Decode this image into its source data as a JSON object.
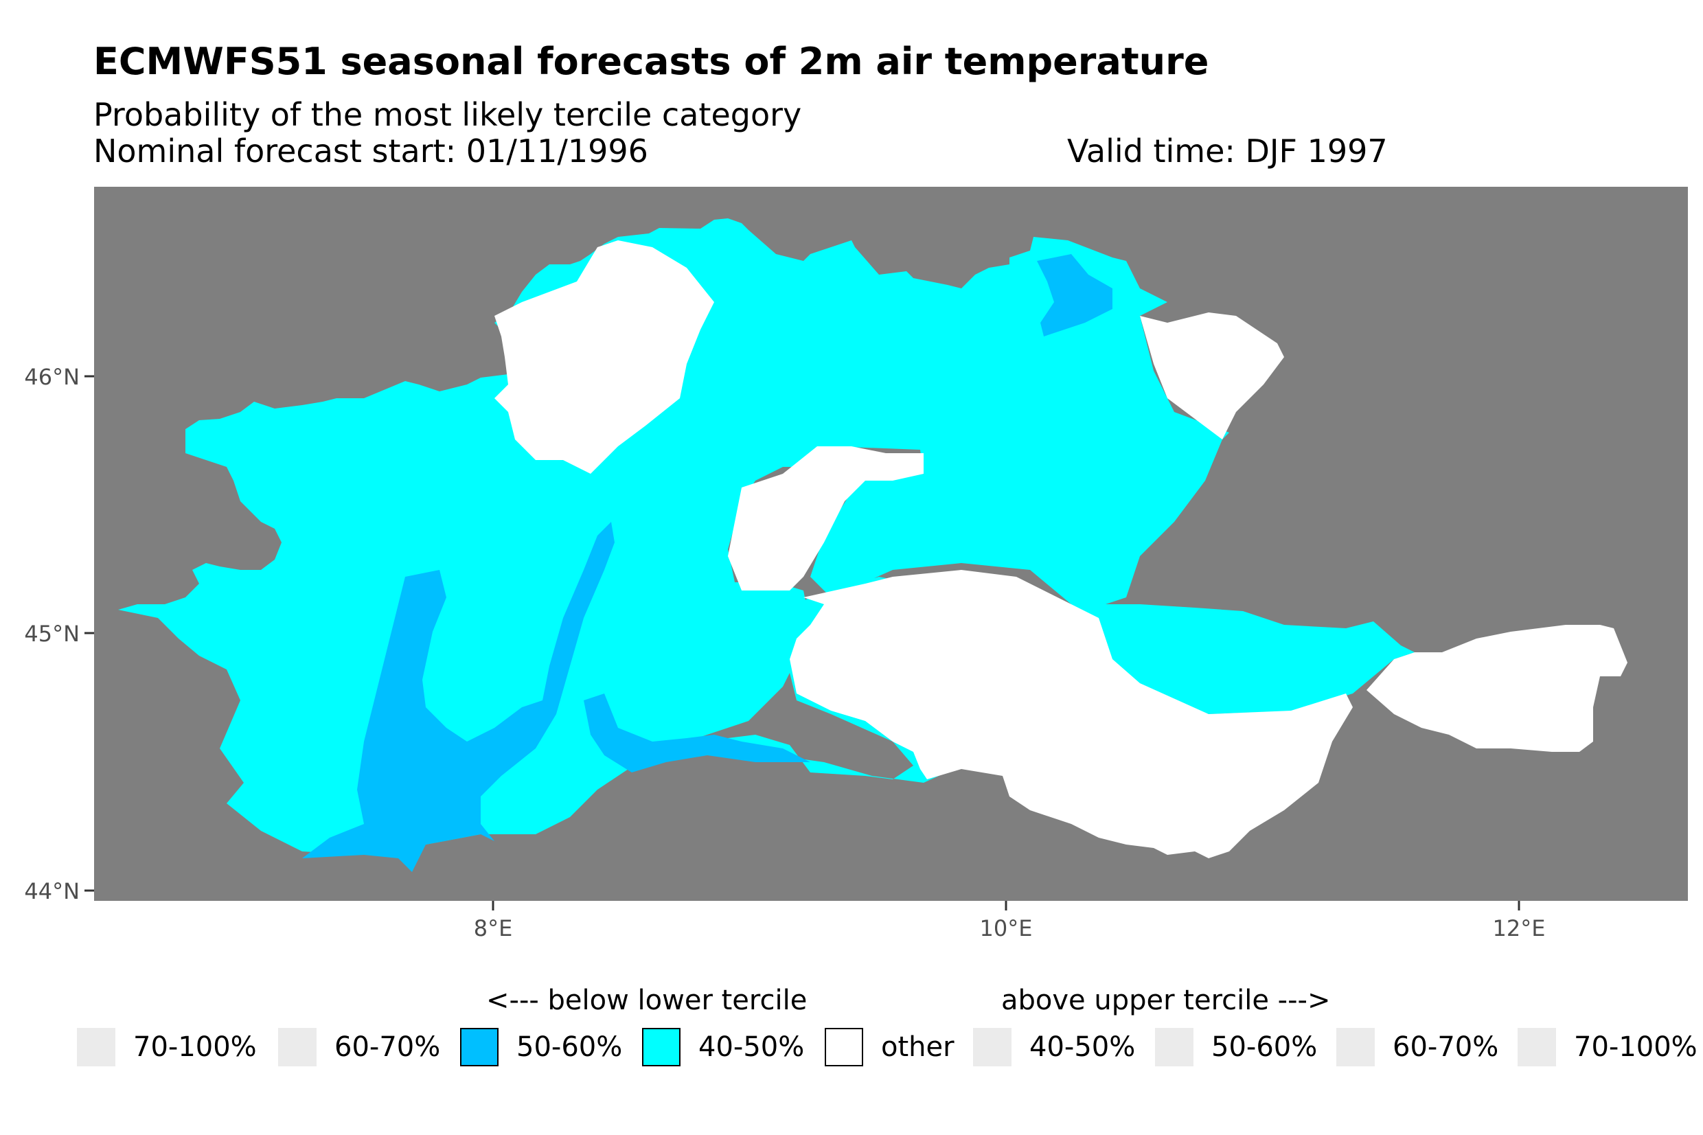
{
  "title": "ECMWFS51 seasonal forecasts of 2m air temperature",
  "subtitle": "Probability of the most likely tercile category",
  "forecast_start": "Nominal forecast start: 01/11/1996",
  "valid_time": "Valid time: DJF 1997",
  "map": {
    "background_color": "#7f7f7f",
    "lat_ticks": [
      "46°N",
      "45°N",
      "44°N"
    ],
    "lon_ticks": [
      "8°E",
      "10°E",
      "12°E"
    ],
    "lat_values": [
      46,
      45,
      44
    ],
    "lon_values": [
      8,
      10,
      12
    ],
    "regions": [
      {
        "category": "below 40-50%",
        "color": "#00ffff"
      },
      {
        "category": "below 50-60%",
        "color": "#00bfff"
      },
      {
        "category": "other",
        "color": "#ffffff"
      }
    ]
  },
  "legend": {
    "below_header": "<--- below lower tercile",
    "above_header": "above upper tercile --->",
    "items": [
      {
        "label": "70-100%",
        "color": "#ebebeb"
      },
      {
        "label": "60-70%",
        "color": "#ebebeb"
      },
      {
        "label": "50-60%",
        "color": "#00bfff"
      },
      {
        "label": "40-50%",
        "color": "#00ffff"
      },
      {
        "label": "other",
        "color": "#ffffff"
      },
      {
        "label": "40-50%",
        "color": "#ebebeb"
      },
      {
        "label": "50-60%",
        "color": "#ebebeb"
      },
      {
        "label": "60-70%",
        "color": "#ebebeb"
      },
      {
        "label": "70-100%",
        "color": "#ebebeb"
      }
    ]
  }
}
